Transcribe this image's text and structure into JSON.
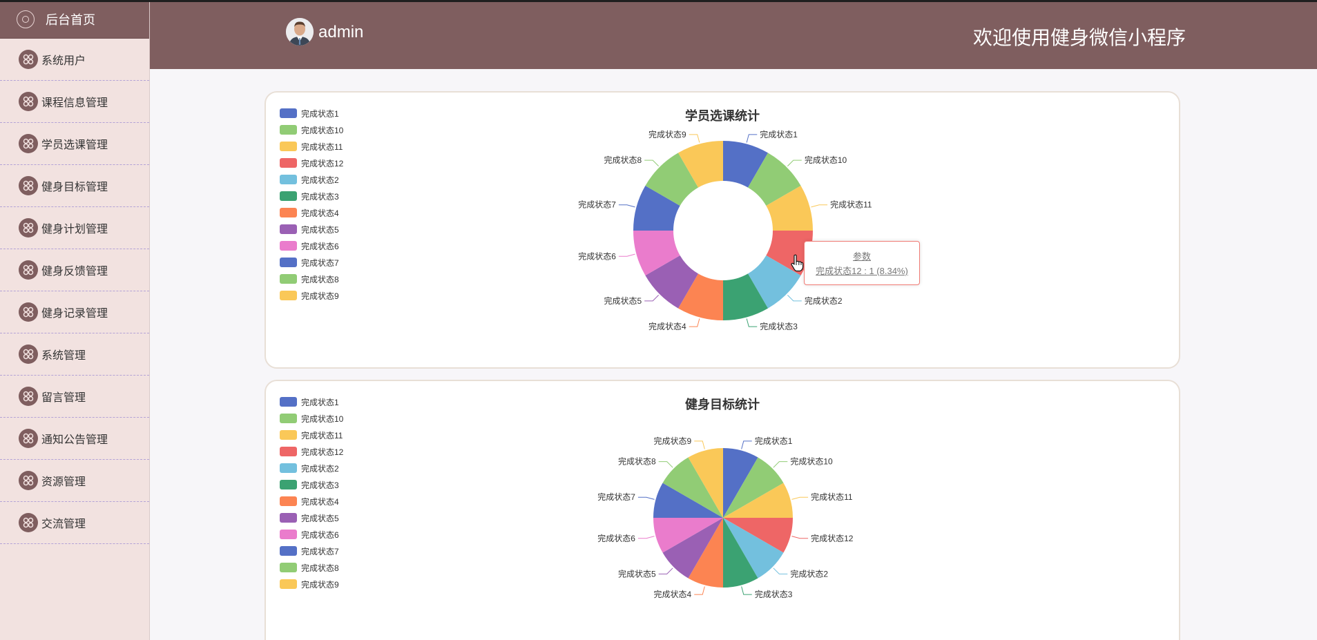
{
  "sidebar": {
    "home_label": "后台首页",
    "items": [
      {
        "label": "系统用户"
      },
      {
        "label": "课程信息管理"
      },
      {
        "label": "学员选课管理"
      },
      {
        "label": "健身目标管理"
      },
      {
        "label": "健身计划管理"
      },
      {
        "label": "健身反馈管理"
      },
      {
        "label": "健身记录管理"
      },
      {
        "label": "系统管理"
      },
      {
        "label": "留言管理"
      },
      {
        "label": "通知公告管理"
      },
      {
        "label": "资源管理"
      },
      {
        "label": "交流管理"
      }
    ]
  },
  "header": {
    "username": "admin",
    "welcome": "欢迎使用健身微信小程序"
  },
  "colors": {
    "accent": "#7f5e5f",
    "sidebar_bg": "#f2e2e0",
    "palette": [
      "#5470c6",
      "#91cc75",
      "#fac858",
      "#ee6666",
      "#73c0de",
      "#3ba272",
      "#fc8452",
      "#9a60b4",
      "#ea7ccc",
      "#5470c6",
      "#91cc75",
      "#fac858"
    ]
  },
  "chart_data": [
    {
      "type": "pie",
      "variant": "donut",
      "title": "学员选课统计",
      "categories": [
        "完成状态1",
        "完成状态10",
        "完成状态11",
        "完成状态12",
        "完成状态2",
        "完成状态3",
        "完成状态4",
        "完成状态5",
        "完成状态6",
        "完成状态7",
        "完成状态8",
        "完成状态9"
      ],
      "values": [
        1,
        1,
        1,
        1,
        1,
        1,
        1,
        1,
        1,
        1,
        1,
        1
      ],
      "legend": "left",
      "tooltip": {
        "title": "参数",
        "text": "完成状态12 : 1 (8.34%)"
      }
    },
    {
      "type": "pie",
      "variant": "pie",
      "title": "健身目标统计",
      "categories": [
        "完成状态1",
        "完成状态10",
        "完成状态11",
        "完成状态12",
        "完成状态2",
        "完成状态3",
        "完成状态4",
        "完成状态5",
        "完成状态6",
        "完成状态7",
        "完成状态8",
        "完成状态9"
      ],
      "values": [
        1,
        1,
        1,
        1,
        1,
        1,
        1,
        1,
        1,
        1,
        1,
        1
      ],
      "legend": "left"
    }
  ]
}
